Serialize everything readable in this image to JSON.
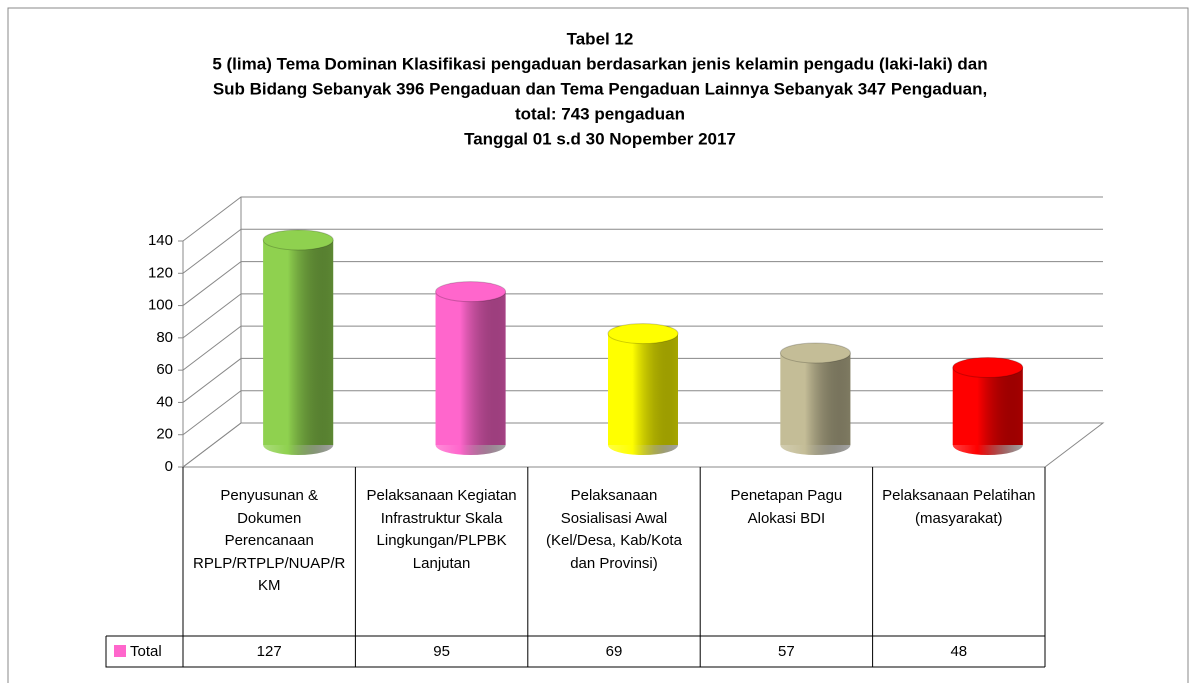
{
  "chart_data": {
    "type": "cylinder",
    "title": [
      "Tabel 12",
      "5 (lima) Tema Dominan Klasifikasi pengaduan berdasarkan jenis kelamin pengadu (laki-laki) dan",
      "Sub Bidang Sebanyak 396  Pengaduan dan Tema Pengaduan Lainnya Sebanyak 347  Pengaduan,",
      "total: 743  pengaduan",
      "Tanggal  01 s.d 30 Nopember 2017"
    ],
    "categories": [
      "Penyusunan & Dokumen Perencanaan RPLP/RTPLP/NUAP/RKM",
      "Pelaksanaan Kegiatan Infrastruktur Skala Lingkungan/PLPBK Lanjutan",
      "Pelaksanaan Sosialisasi Awal (Kel/Desa, Kab/Kota dan Provinsi)",
      "Penetapan Pagu Alokasi BDI",
      "Pelaksanaan Pelatihan (masyarakat)"
    ],
    "series": [
      {
        "name": "Total",
        "color": "#ff66cc",
        "values": [
          127,
          95,
          69,
          57,
          48
        ],
        "colors": [
          "#8fd14f",
          "#ff66cc",
          "#ffff00",
          "#c4bd97",
          "#ff0000"
        ]
      }
    ],
    "ylim": [
      0,
      140
    ],
    "yticks": [
      0,
      20,
      40,
      60,
      80,
      100,
      120,
      140
    ],
    "grid": true
  }
}
